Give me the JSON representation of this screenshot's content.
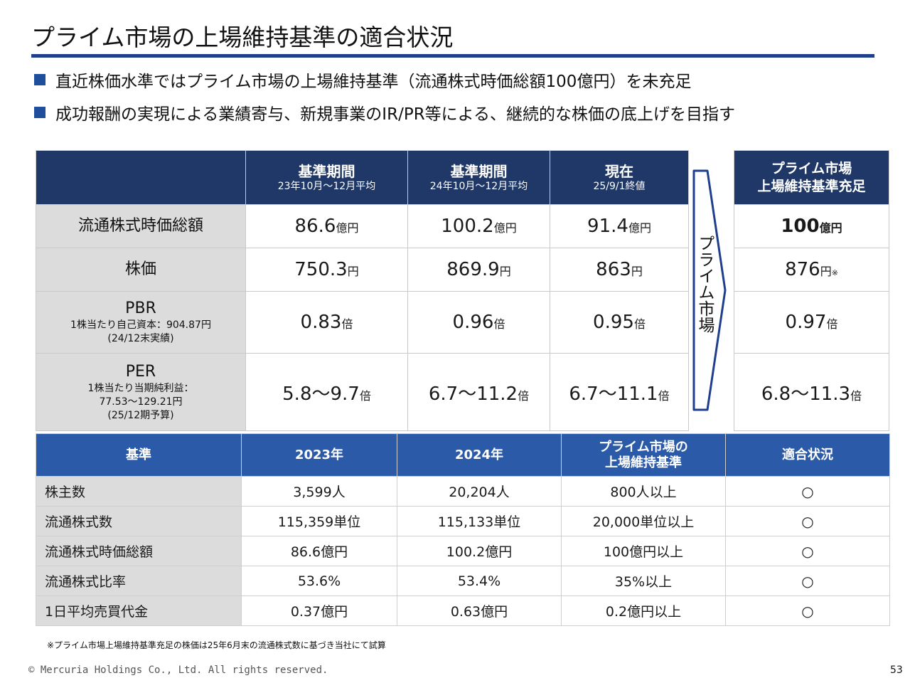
{
  "title": "プライム市場の上場維持基準の適合状況",
  "bullets": [
    "直近株価水準ではプライム市場の上場維持基準（流通株式時価総額100億円）を未充足",
    "成功報酬の実現による業績寄与、新規事業のIR/PR等による、継続的な株価の底上げを目指す"
  ],
  "top_table": {
    "headers": [
      {
        "main": "基準期間",
        "sub": "23年10月～12月平均"
      },
      {
        "main": "基準期間",
        "sub": "24年10月～12月平均"
      },
      {
        "main": "現在",
        "sub": "25/9/1終値"
      }
    ],
    "rows": [
      {
        "label": "流通株式時価総額",
        "sub1": "",
        "sub2": "",
        "sub3": "",
        "values": [
          {
            "num": "86.6",
            "unit": "億円"
          },
          {
            "num": "100.2",
            "unit": "億円"
          },
          {
            "num": "91.4",
            "unit": "億円"
          }
        ]
      },
      {
        "label": "株価",
        "sub1": "",
        "sub2": "",
        "sub3": "",
        "values": [
          {
            "num": "750.3",
            "unit": "円"
          },
          {
            "num": "869.9",
            "unit": "円"
          },
          {
            "num": "863",
            "unit": "円"
          }
        ]
      },
      {
        "label": "PBR",
        "sub1": "1株当たり自己資本：904.87円",
        "sub2": "(24/12末実績)",
        "sub3": "",
        "values": [
          {
            "num": "0.83",
            "unit": "倍"
          },
          {
            "num": "0.96",
            "unit": "倍"
          },
          {
            "num": "0.95",
            "unit": "倍"
          }
        ]
      },
      {
        "label": "PER",
        "sub1": "1株当たり当期純利益：",
        "sub2": "77.53～129.21円",
        "sub3": "(25/12期予算)",
        "values": [
          {
            "num": "5.8～9.7",
            "unit": "倍"
          },
          {
            "num": "6.7～11.2",
            "unit": "倍"
          },
          {
            "num": "6.7～11.1",
            "unit": "倍"
          }
        ]
      }
    ]
  },
  "arrow_label": "プライム市場",
  "target": {
    "header_line1": "プライム市場",
    "header_line2": "上場維持基準充足",
    "values": [
      {
        "num": "100",
        "unit": "億円",
        "note": ""
      },
      {
        "num": "876",
        "unit": "円",
        "note": "※"
      },
      {
        "num": "0.97",
        "unit": "倍",
        "note": ""
      },
      {
        "num": "6.8～11.3",
        "unit": "倍",
        "note": ""
      }
    ]
  },
  "criteria_table": {
    "headers": [
      "基準",
      "2023年",
      "2024年",
      "プライム市場の",
      "上場維持基準",
      "適合状況"
    ],
    "rows": [
      [
        "株主数",
        "3,599人",
        "20,204人",
        "800人以上",
        "○"
      ],
      [
        "流通株式数",
        "115,359単位",
        "115,133単位",
        "20,000単位以上",
        "○"
      ],
      [
        "流通株式時価総額",
        "86.6億円",
        "100.2億円",
        "100億円以上",
        "○"
      ],
      [
        "流通株式比率",
        "53.6%",
        "53.4%",
        "35%以上",
        "○"
      ],
      [
        "1日平均売買代金",
        "0.37億円",
        "0.63億円",
        "0.2億円以上",
        "○"
      ]
    ]
  },
  "footnote": "※プライム市場上場維持基準充足の株価は25年6月末の流通株式数に基づき当社にて試算",
  "copyright": "© Mercuria Holdings Co., Ltd. All rights reserved.",
  "page_number": "53",
  "colors": {
    "title_rule": "#1f3f8c",
    "header_dark": "#1f3867",
    "header_blue": "#2b5aa8",
    "label_gray": "#dcdcdc"
  }
}
